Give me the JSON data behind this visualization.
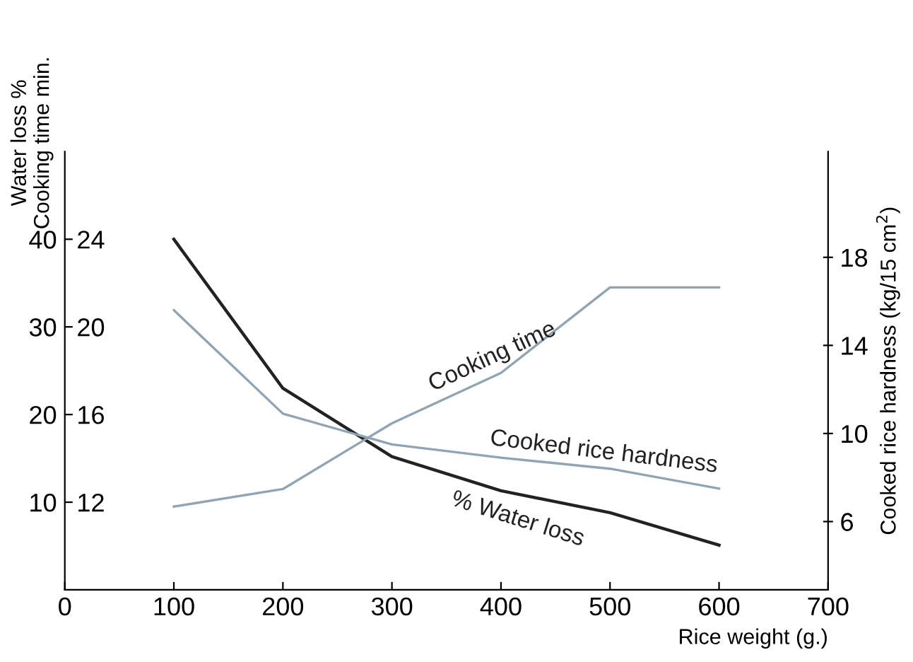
{
  "chart_data": {
    "type": "line",
    "xlabel": "Rice weight (g.)",
    "ylabel": "Water loss %",
    "y3label": "Cooking time min.",
    "y2label": "Cooked rice hardness (kg/15 cm$^{2}$)",
    "x": [
      100,
      200,
      300,
      400,
      500,
      600
    ],
    "xlim": [
      0,
      700
    ],
    "xticks": [
      0,
      100,
      200,
      300,
      400,
      500,
      600,
      700
    ],
    "ylim": [
      0,
      50
    ],
    "yticks": [
      10,
      20,
      30,
      40
    ],
    "y3lim": [
      8,
      28
    ],
    "y3ticks": [
      12,
      16,
      20,
      24
    ],
    "y2lim": [
      2.9,
      22.8
    ],
    "y2ticks": [
      6,
      10,
      14,
      18
    ],
    "grid": false,
    "legend": false,
    "marker": "none",
    "line_style": "solid",
    "series": [
      {
        "name": "% Water loss",
        "color": "#222222",
        "values": [
          40,
          23,
          15.2,
          11.3,
          8.8,
          5.1
        ]
      },
      {
        "name": "Cooking time",
        "color": "#8fa4b4",
        "axis": "y3",
        "values": [
          11.8,
          12.6,
          15.6,
          17.9,
          21.8,
          21.8
        ]
      },
      {
        "name": "Cooked rice hardness",
        "color": "#8fa4b4",
        "axis": "y2",
        "values": [
          15.6,
          10.9,
          9.5,
          8.9,
          8.4,
          7.5
        ]
      }
    ]
  }
}
